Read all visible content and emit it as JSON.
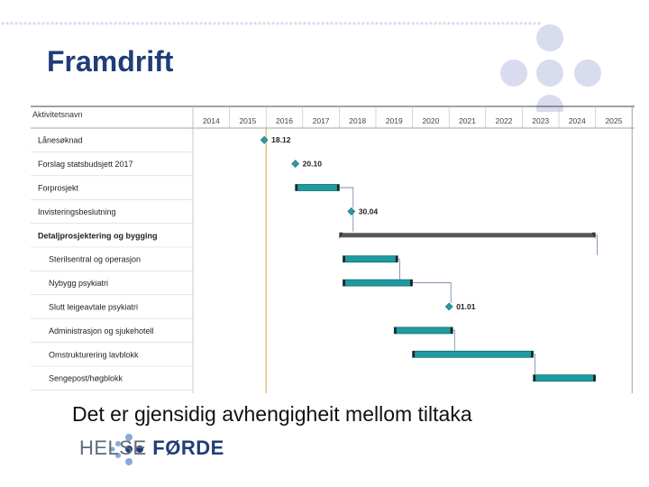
{
  "slide": {
    "title": "Framdrift",
    "caption": "Det er gjensidig avhengigheit mellom tiltaka",
    "logo_light": "HELSE ",
    "logo_bold": "FØRDE"
  },
  "colors": {
    "title": "#1f3d7a",
    "bar": "#1f9aa0",
    "bar_dark": "#0f6f75",
    "summary": "#555555",
    "milestone": "#2a9aa6",
    "today": "#e0b070",
    "deco": "#d9dbef"
  },
  "chart_data": {
    "type": "gantt",
    "title": "",
    "column_header": "Aktivitetsnavn",
    "years": [
      "2014",
      "2015",
      "2016",
      "2017",
      "2018",
      "2019",
      "2020",
      "2021",
      "2022",
      "2023",
      "2024",
      "2025"
    ],
    "today_marker": 2016.0,
    "tasks": [
      {
        "name": "Lånesøknad",
        "kind": "milestone",
        "date": 2015.95,
        "label": "18.12"
      },
      {
        "name": "Forslag statsbudsjett 2017",
        "kind": "milestone",
        "date": 2016.8,
        "label": "20.10"
      },
      {
        "name": "Forprosjekt",
        "kind": "task",
        "start": 2016.8,
        "end": 2018.0
      },
      {
        "name": "Invisteringsbeslutning",
        "kind": "milestone",
        "date": 2018.33,
        "label": "30.04"
      },
      {
        "name": "Detaljprosjektering og bygging",
        "kind": "summary",
        "start": 2018.0,
        "end": 2025.0,
        "bold": true
      },
      {
        "name": "Sterilsentral og operasjon",
        "kind": "task",
        "start": 2018.1,
        "end": 2019.6,
        "indent": true
      },
      {
        "name": "Nybygg psykiatri",
        "kind": "task",
        "start": 2018.1,
        "end": 2020.0,
        "indent": true
      },
      {
        "name": "Slutt leigeavtale psykiatri",
        "kind": "milestone",
        "date": 2021.0,
        "label": "01.01",
        "indent": true
      },
      {
        "name": "Administrasjon og sjukehotell",
        "kind": "task",
        "start": 2019.5,
        "end": 2021.1,
        "indent": true
      },
      {
        "name": "Omstrukturering lavblokk",
        "kind": "task",
        "start": 2020.0,
        "end": 2023.3,
        "indent": true
      },
      {
        "name": "Sengepost/høgblokk",
        "kind": "task",
        "start": 2023.3,
        "end": 2025.0,
        "indent": true
      }
    ]
  }
}
